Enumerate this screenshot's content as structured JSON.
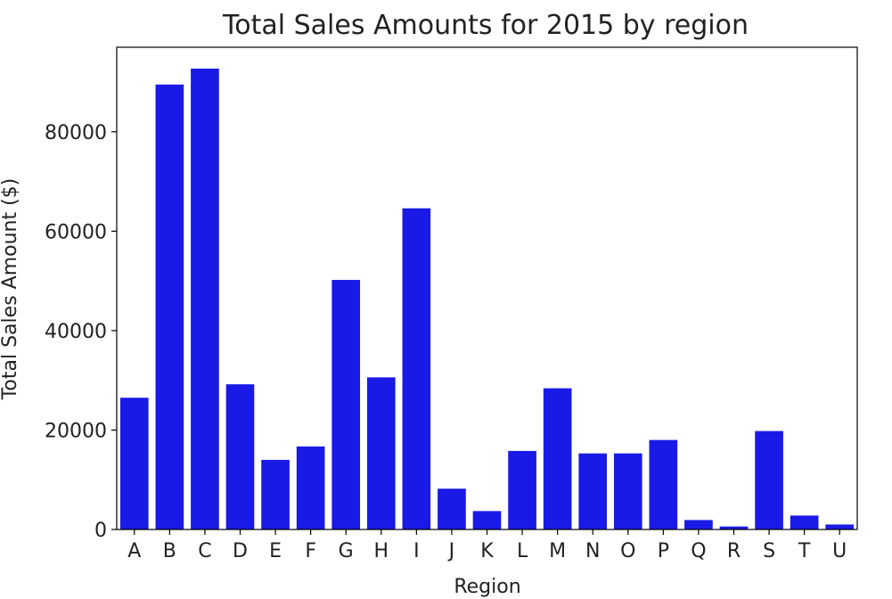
{
  "chart_data": {
    "type": "bar",
    "title": "Total Sales Amounts for 2015 by region",
    "xlabel": "Region",
    "ylabel": "Total Sales Amount ($)",
    "categories": [
      "A",
      "B",
      "C",
      "D",
      "E",
      "F",
      "G",
      "H",
      "I",
      "J",
      "K",
      "L",
      "M",
      "N",
      "O",
      "P",
      "Q",
      "R",
      "S",
      "T",
      "U"
    ],
    "values": [
      26500,
      89500,
      92700,
      29200,
      14000,
      16700,
      50200,
      30600,
      64600,
      8200,
      3700,
      15800,
      28400,
      15300,
      15300,
      18000,
      1900,
      600,
      19800,
      2800,
      1000
    ],
    "ylim": [
      0,
      97000
    ],
    "yticks": [
      0,
      20000,
      40000,
      60000,
      80000
    ],
    "ytick_labels": [
      "0",
      "20000",
      "40000",
      "60000",
      "80000"
    ],
    "bar_color": "#1a1ae6",
    "grid": false,
    "legend": "none"
  }
}
